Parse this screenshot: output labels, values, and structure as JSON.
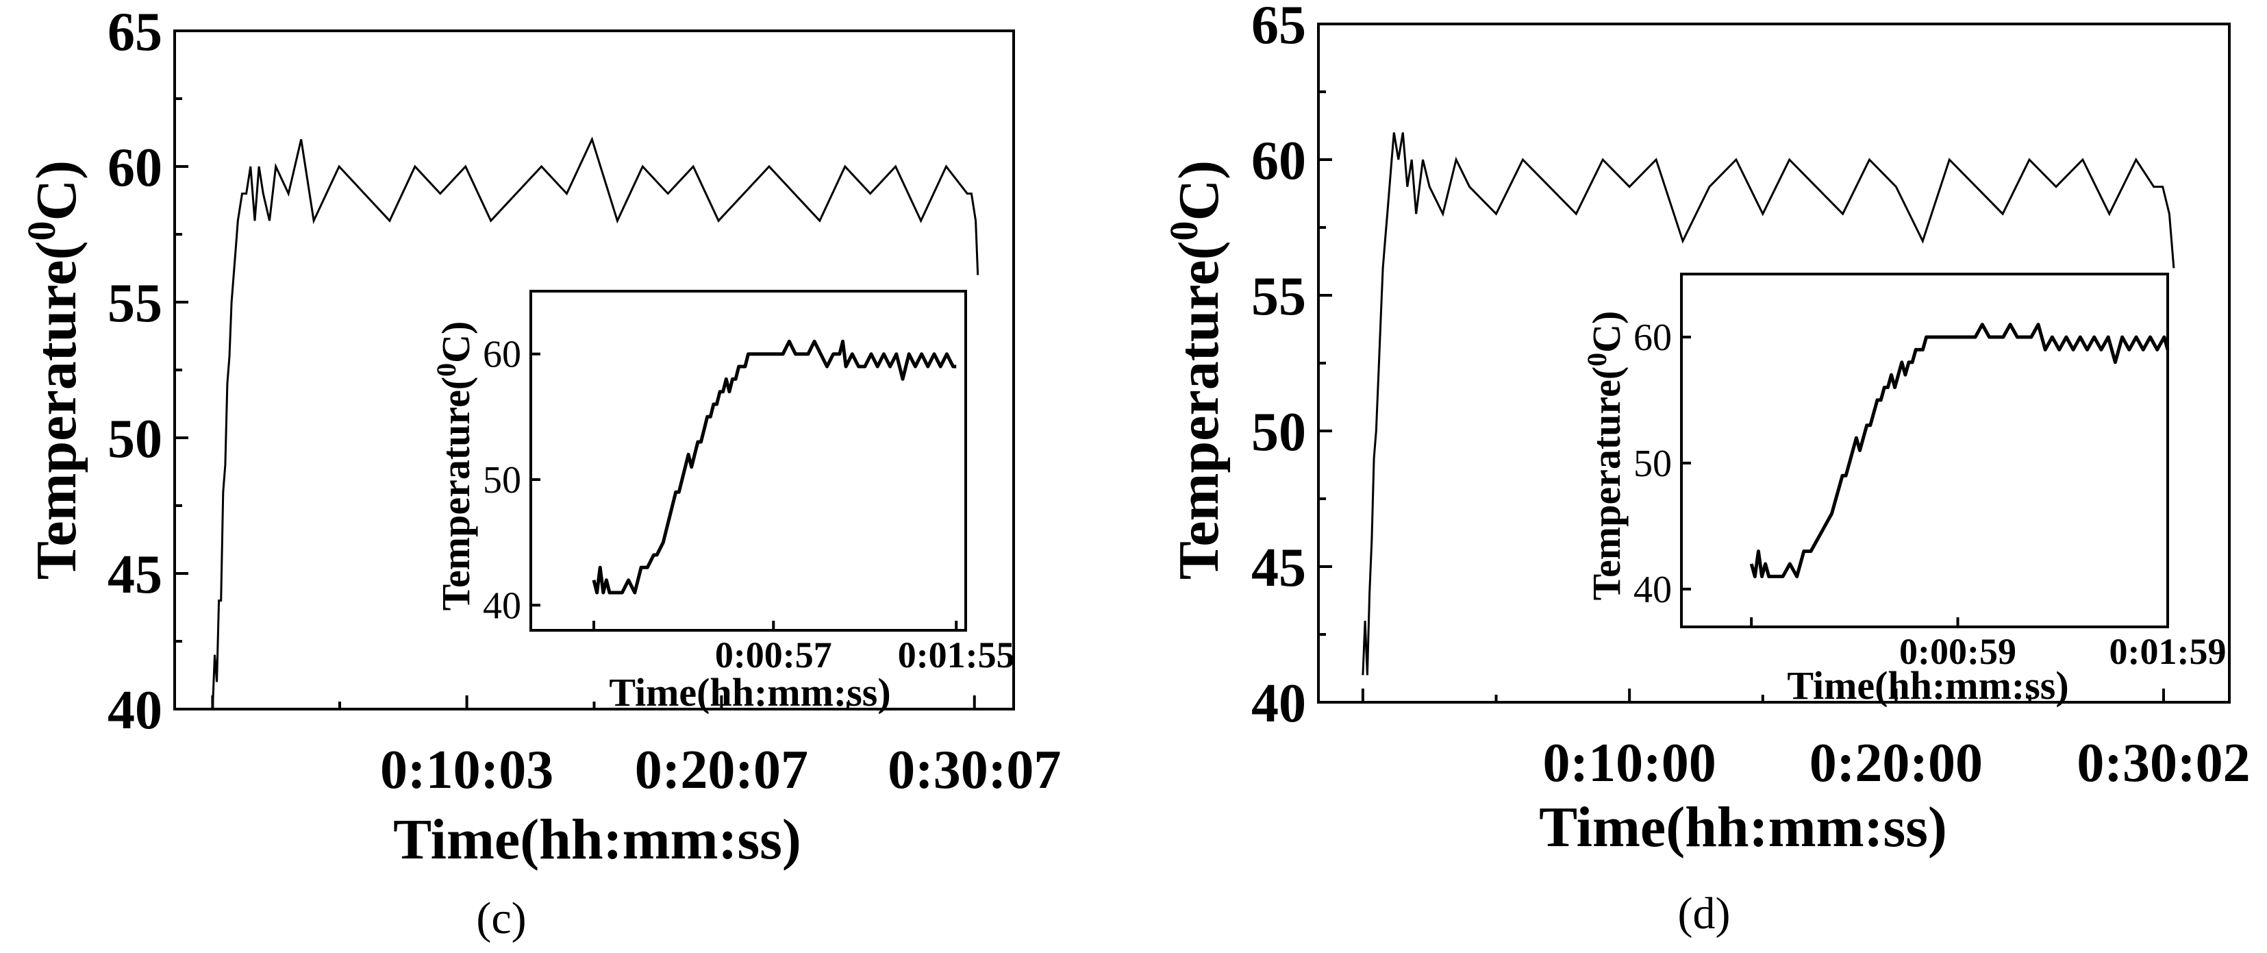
{
  "chart_data": [
    {
      "panel": "(c)",
      "type": "line",
      "xlabel": "Time(hh:mm:ss)",
      "ylabel": "Temperature(0C)",
      "ylabel_base": "Temperature(",
      "ylabel_sup": "0",
      "ylabel_unit": "C)",
      "ylim": [
        40,
        65
      ],
      "yticks": [
        "40",
        "45",
        "50",
        "55",
        "60",
        "65"
      ],
      "xlim_seconds": [
        -90,
        1900
      ],
      "xticks": [
        {
          "label": "0:10:03",
          "seconds": 603
        },
        {
          "label": "0:20:07",
          "seconds": 1207
        },
        {
          "label": "0:30:07",
          "seconds": 1807
        }
      ],
      "series": [
        {
          "x_seconds": [
            0,
            5,
            10,
            15,
            20,
            25,
            30,
            35,
            40,
            45,
            50,
            55,
            60,
            70,
            80,
            90,
            100,
            110,
            120,
            135,
            150,
            180,
            210,
            240,
            300,
            360,
            420,
            480,
            540,
            600,
            660,
            720,
            780,
            840,
            900,
            960,
            1020,
            1080,
            1140,
            1200,
            1260,
            1320,
            1380,
            1440,
            1500,
            1560,
            1620,
            1680,
            1740,
            1790,
            1800,
            1810,
            1815
          ],
          "y_celsius": [
            40,
            42,
            41,
            44,
            44,
            48,
            49,
            52,
            53,
            55,
            56,
            57,
            58,
            59,
            59,
            60,
            58,
            60,
            59,
            58,
            60,
            59,
            61,
            58,
            60,
            59,
            58,
            60,
            59,
            60,
            58,
            59,
            60,
            59,
            61,
            58,
            60,
            59,
            60,
            58,
            59,
            60,
            59,
            58,
            60,
            59,
            60,
            58,
            60,
            59,
            59,
            58,
            56
          ]
        }
      ],
      "inset": {
        "type": "line",
        "xlabel": "Time(hh:mm:ss)",
        "ylabel": "Temperature(0C)",
        "ylabel_base": "Temperature(",
        "ylabel_sup": "0",
        "ylabel_unit": "C)",
        "ylim": [
          38,
          65
        ],
        "yticks": [
          "40",
          "50",
          "60"
        ],
        "xlim_seconds": [
          -20,
          118
        ],
        "xticks": [
          {
            "label": "0:00:57",
            "seconds": 57
          },
          {
            "label": "0:01:55",
            "seconds": 115
          }
        ],
        "series": [
          {
            "x_seconds": [
              0,
              1,
              2,
              3,
              4,
              5,
              7,
              9,
              11,
              13,
              15,
              17,
              19,
              20,
              22,
              23,
              24,
              25,
              26,
              27,
              28,
              29,
              30,
              31,
              32,
              33,
              34,
              35,
              36,
              37,
              38,
              39,
              40,
              41,
              42,
              43,
              44,
              45,
              46,
              47,
              48,
              49,
              50,
              51,
              52,
              53,
              54,
              55,
              56,
              57,
              58,
              60,
              62,
              64,
              66,
              68,
              70,
              72,
              74,
              76,
              78,
              79,
              80,
              82,
              84,
              86,
              88,
              90,
              92,
              94,
              96,
              98,
              100,
              102,
              104,
              106,
              108,
              110,
              112,
              114,
              115
            ],
            "y_celsius": [
              42,
              41,
              43,
              41,
              42,
              41,
              41,
              41,
              42,
              41,
              43,
              43,
              44,
              44,
              45,
              46,
              47,
              48,
              49,
              49,
              50,
              51,
              52,
              51,
              52,
              53,
              53,
              54,
              55,
              55,
              56,
              56,
              57,
              57,
              58,
              57,
              58,
              58,
              59,
              59,
              59,
              60,
              60,
              60,
              60,
              60,
              60,
              60,
              60,
              60,
              60,
              60,
              61,
              60,
              60,
              60,
              61,
              60,
              59,
              60,
              60,
              61,
              59,
              60,
              59,
              59,
              60,
              59,
              60,
              59,
              60,
              58,
              60,
              59,
              60,
              59,
              60,
              59,
              60,
              59,
              59
            ]
          }
        ]
      }
    },
    {
      "panel": "(d)",
      "type": "line",
      "xlabel": "Time(hh:mm:ss)",
      "ylabel": "Temperature(0C)",
      "ylabel_base": "Temperature(",
      "ylabel_sup": "0",
      "ylabel_unit": "C)",
      "ylim": [
        40,
        65
      ],
      "yticks": [
        "40",
        "45",
        "50",
        "55",
        "60",
        "65"
      ],
      "xlim_seconds": [
        -100,
        1950
      ],
      "xticks": [
        {
          "label": "0:10:00",
          "seconds": 600
        },
        {
          "label": "0:20:00",
          "seconds": 1200
        },
        {
          "label": "0:30:02",
          "seconds": 1802
        }
      ],
      "series": [
        {
          "x_seconds": [
            0,
            5,
            10,
            15,
            20,
            25,
            30,
            35,
            40,
            45,
            50,
            55,
            60,
            65,
            70,
            80,
            90,
            100,
            110,
            120,
            135,
            150,
            180,
            210,
            240,
            300,
            360,
            420,
            480,
            540,
            600,
            660,
            720,
            780,
            840,
            900,
            960,
            1020,
            1080,
            1140,
            1200,
            1260,
            1320,
            1380,
            1440,
            1500,
            1560,
            1620,
            1680,
            1740,
            1780,
            1800,
            1815,
            1825
          ],
          "y_celsius": [
            41,
            43,
            41,
            44,
            46,
            49,
            50,
            52,
            54,
            56,
            57,
            58,
            59,
            60,
            61,
            60,
            61,
            59,
            60,
            58,
            60,
            59,
            58,
            60,
            59,
            58,
            60,
            59,
            58,
            60,
            59,
            60,
            57,
            59,
            60,
            58,
            60,
            59,
            58,
            60,
            59,
            57,
            60,
            59,
            58,
            60,
            59,
            60,
            58,
            60,
            59,
            59,
            58,
            56
          ]
        }
      ],
      "inset": {
        "type": "line",
        "xlabel": "Time(hh:mm:ss)",
        "ylabel": "Temperature(0C)",
        "ylabel_base": "Temperature(",
        "ylabel_sup": "0",
        "ylabel_unit": "C)",
        "ylim": [
          37,
          65
        ],
        "yticks": [
          "40",
          "50",
          "60"
        ],
        "xlim_seconds": [
          -20,
          119
        ],
        "xticks": [
          {
            "label": "0:00:59",
            "seconds": 59
          },
          {
            "label": "0:01:59",
            "seconds": 119
          }
        ],
        "series": [
          {
            "x_seconds": [
              0,
              1,
              2,
              3,
              4,
              5,
              7,
              9,
              11,
              13,
              15,
              17,
              19,
              21,
              23,
              24,
              25,
              26,
              27,
              28,
              29,
              30,
              31,
              32,
              33,
              34,
              35,
              36,
              37,
              38,
              39,
              40,
              41,
              42,
              43,
              44,
              45,
              46,
              47,
              48,
              49,
              50,
              51,
              52,
              53,
              54,
              55,
              56,
              58,
              60,
              62,
              64,
              66,
              68,
              70,
              72,
              74,
              76,
              78,
              80,
              82,
              84,
              86,
              88,
              90,
              92,
              94,
              96,
              98,
              100,
              102,
              104,
              106,
              108,
              110,
              112,
              114,
              116,
              118,
              119
            ],
            "y_celsius": [
              42,
              41,
              43,
              41,
              42,
              41,
              41,
              41,
              42,
              41,
              43,
              43,
              44,
              45,
              46,
              47,
              48,
              49,
              49,
              50,
              51,
              52,
              51,
              52,
              53,
              53,
              54,
              55,
              55,
              56,
              56,
              57,
              56,
              57,
              58,
              57,
              58,
              58,
              59,
              59,
              59,
              60,
              60,
              60,
              60,
              60,
              60,
              60,
              60,
              60,
              60,
              60,
              61,
              60,
              60,
              60,
              61,
              60,
              60,
              60,
              61,
              59,
              60,
              59,
              60,
              59,
              60,
              59,
              60,
              59,
              60,
              58,
              60,
              59,
              60,
              59,
              60,
              59,
              60,
              59
            ]
          }
        ]
      }
    }
  ]
}
